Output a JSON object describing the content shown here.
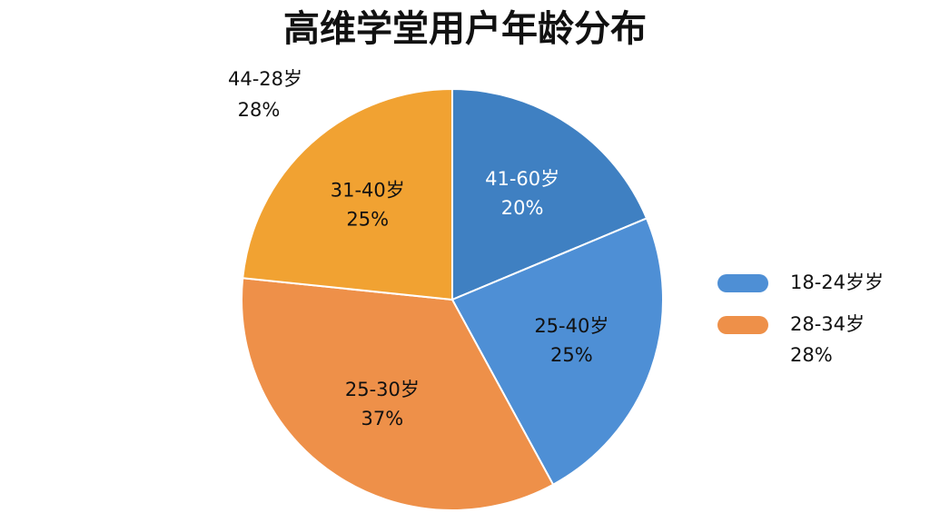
{
  "chart_data": {
    "type": "pie",
    "title": "高维学堂用户年龄分布",
    "categories": [
      "41-60岁",
      "25-40岁",
      "25-30岁",
      "31-40岁"
    ],
    "values": [
      20,
      25,
      37,
      25
    ],
    "value_labels": [
      "20%",
      "25%",
      "37%",
      "25%"
    ],
    "colors": [
      "#3f80c2",
      "#4e8fd5",
      "#ee9049",
      "#f1a232"
    ],
    "label_colors": [
      "#ffffff",
      "#111111",
      "#111111",
      "#111111"
    ],
    "legend_position": "right",
    "legend": [
      {
        "name": "18-24岁岁",
        "color": "#4e8fd5"
      },
      {
        "name": "28-34岁",
        "note": "28%",
        "color": "#ee9049"
      }
    ],
    "annotations": [
      {
        "text": "44-28岁",
        "note": "28%"
      }
    ]
  }
}
